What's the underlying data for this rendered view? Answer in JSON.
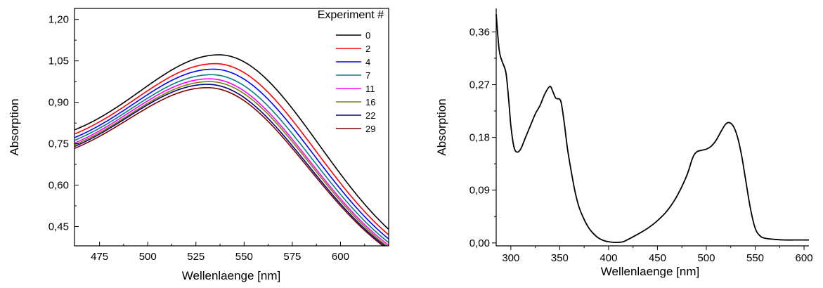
{
  "chart_data": [
    {
      "type": "line",
      "xlabel": "Wellenlaenge [nm]",
      "ylabel": "Absorption",
      "xlim": [
        462,
        625
      ],
      "ylim": [
        0.38,
        1.24
      ],
      "xticks": [
        475,
        500,
        525,
        550,
        575,
        600
      ],
      "xtick_labels": [
        "475",
        "500",
        "525",
        "550",
        "575",
        "600"
      ],
      "yticks": [
        0.45,
        0.6,
        0.75,
        0.9,
        1.05,
        1.2
      ],
      "ytick_labels": [
        "0,45",
        "0,60",
        "0,75",
        "0,90",
        "1,05",
        "1,20"
      ],
      "legend_title": "Experiment #",
      "legend_position": "top-right",
      "series": [
        {
          "name": "0",
          "color": "#000000",
          "values": {
            "start": 0.8,
            "peak": 1.072,
            "peak_x": 537,
            "end": 0.44
          }
        },
        {
          "name": "2",
          "color": "#ff0000",
          "values": {
            "start": 0.785,
            "peak": 1.04,
            "peak_x": 535,
            "end": 0.42
          }
        },
        {
          "name": "4",
          "color": "#0000ff",
          "values": {
            "start": 0.772,
            "peak": 1.02,
            "peak_x": 534,
            "end": 0.405
          }
        },
        {
          "name": "7",
          "color": "#008080",
          "values": {
            "start": 0.762,
            "peak": 1.0,
            "peak_x": 533,
            "end": 0.392
          }
        },
        {
          "name": "11",
          "color": "#ff00ff",
          "values": {
            "start": 0.752,
            "peak": 0.985,
            "peak_x": 532,
            "end": 0.382
          }
        },
        {
          "name": "16",
          "color": "#808000",
          "values": {
            "start": 0.746,
            "peak": 0.975,
            "peak_x": 532,
            "end": 0.375
          }
        },
        {
          "name": "22",
          "color": "#000080",
          "values": {
            "start": 0.74,
            "peak": 0.965,
            "peak_x": 531,
            "end": 0.37
          }
        },
        {
          "name": "29",
          "color": "#800000",
          "values": {
            "start": 0.733,
            "peak": 0.953,
            "peak_x": 531,
            "end": 0.365
          }
        }
      ]
    },
    {
      "type": "line",
      "xlabel": "Wellenlaenge [nm]",
      "ylabel": "Absorption",
      "xlim": [
        285,
        605
      ],
      "ylim": [
        -0.005,
        0.4
      ],
      "xticks": [
        300,
        350,
        400,
        450,
        500,
        550,
        600
      ],
      "xtick_labels": [
        "300",
        "350",
        "400",
        "450",
        "500",
        "550",
        "600"
      ],
      "yticks": [
        0.0,
        0.09,
        0.18,
        0.27,
        0.36
      ],
      "ytick_labels": [
        "0,00",
        "0,09",
        "0,18",
        "0,27",
        "0,36"
      ],
      "series": [
        {
          "color": "#000000",
          "x": [
            285,
            288,
            291,
            295,
            298,
            300,
            303,
            306,
            310,
            315,
            320,
            325,
            330,
            335,
            340,
            343,
            346,
            350,
            352,
            355,
            358,
            362,
            366,
            370,
            375,
            380,
            385,
            390,
            395,
            400,
            405,
            410,
            415,
            420,
            430,
            440,
            450,
            460,
            470,
            480,
            486,
            490,
            495,
            500,
            505,
            510,
            515,
            520,
            524,
            528,
            532,
            536,
            540,
            545,
            550,
            555,
            560,
            570,
            580,
            590,
            605
          ],
          "y": [
            0.39,
            0.33,
            0.31,
            0.29,
            0.24,
            0.2,
            0.165,
            0.155,
            0.16,
            0.18,
            0.2,
            0.22,
            0.235,
            0.255,
            0.267,
            0.258,
            0.247,
            0.245,
            0.235,
            0.2,
            0.16,
            0.12,
            0.085,
            0.06,
            0.04,
            0.025,
            0.015,
            0.008,
            0.004,
            0.002,
            0.001,
            0.001,
            0.002,
            0.006,
            0.015,
            0.025,
            0.038,
            0.055,
            0.08,
            0.115,
            0.145,
            0.155,
            0.158,
            0.16,
            0.165,
            0.175,
            0.19,
            0.203,
            0.205,
            0.198,
            0.18,
            0.15,
            0.11,
            0.06,
            0.025,
            0.012,
            0.008,
            0.006,
            0.005,
            0.005,
            0.005
          ]
        }
      ]
    }
  ]
}
